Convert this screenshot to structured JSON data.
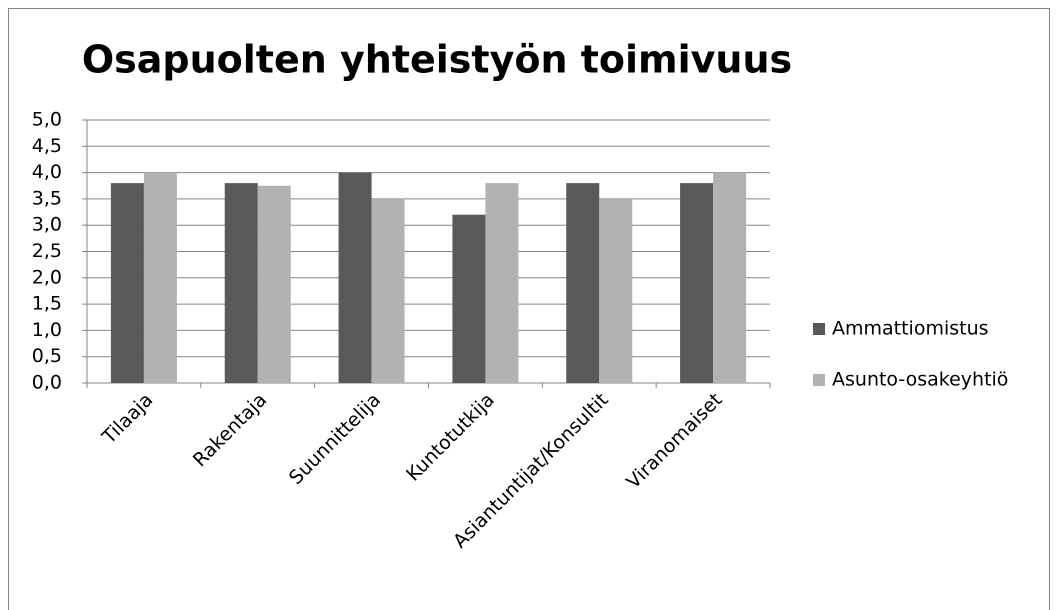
{
  "chart_data": {
    "type": "bar",
    "title": "Osapuolten yhteistyön toimivuus",
    "categories": [
      "Tilaaja",
      "Rakentaja",
      "Suunnittelija",
      "Kuntotutkija",
      "Asiantuntijat/Konsultit",
      "Viranomaiset"
    ],
    "series": [
      {
        "name": "Ammattiomistus",
        "color": "#595959",
        "values": [
          3.8,
          3.8,
          4.0,
          3.2,
          3.8,
          3.8
        ]
      },
      {
        "name": "Asunto-osakeyhtiö",
        "color": "#b2b2b2",
        "values": [
          4.0,
          3.75,
          3.5,
          3.8,
          3.5,
          4.0
        ]
      }
    ],
    "ylim": [
      0,
      5
    ],
    "yticks": [
      {
        "value": 0,
        "label": "0,0"
      },
      {
        "value": 0.5,
        "label": "0,5"
      },
      {
        "value": 1,
        "label": "1,0"
      },
      {
        "value": 1.5,
        "label": "1,5"
      },
      {
        "value": 2,
        "label": "2,0"
      },
      {
        "value": 2.5,
        "label": "2,5"
      },
      {
        "value": 3,
        "label": "3,0"
      },
      {
        "value": 3.5,
        "label": "3,5"
      },
      {
        "value": 4,
        "label": "4,0"
      },
      {
        "value": 4.5,
        "label": "4,5"
      },
      {
        "value": 5,
        "label": "5,0"
      }
    ],
    "grid": true,
    "legend": "right"
  }
}
